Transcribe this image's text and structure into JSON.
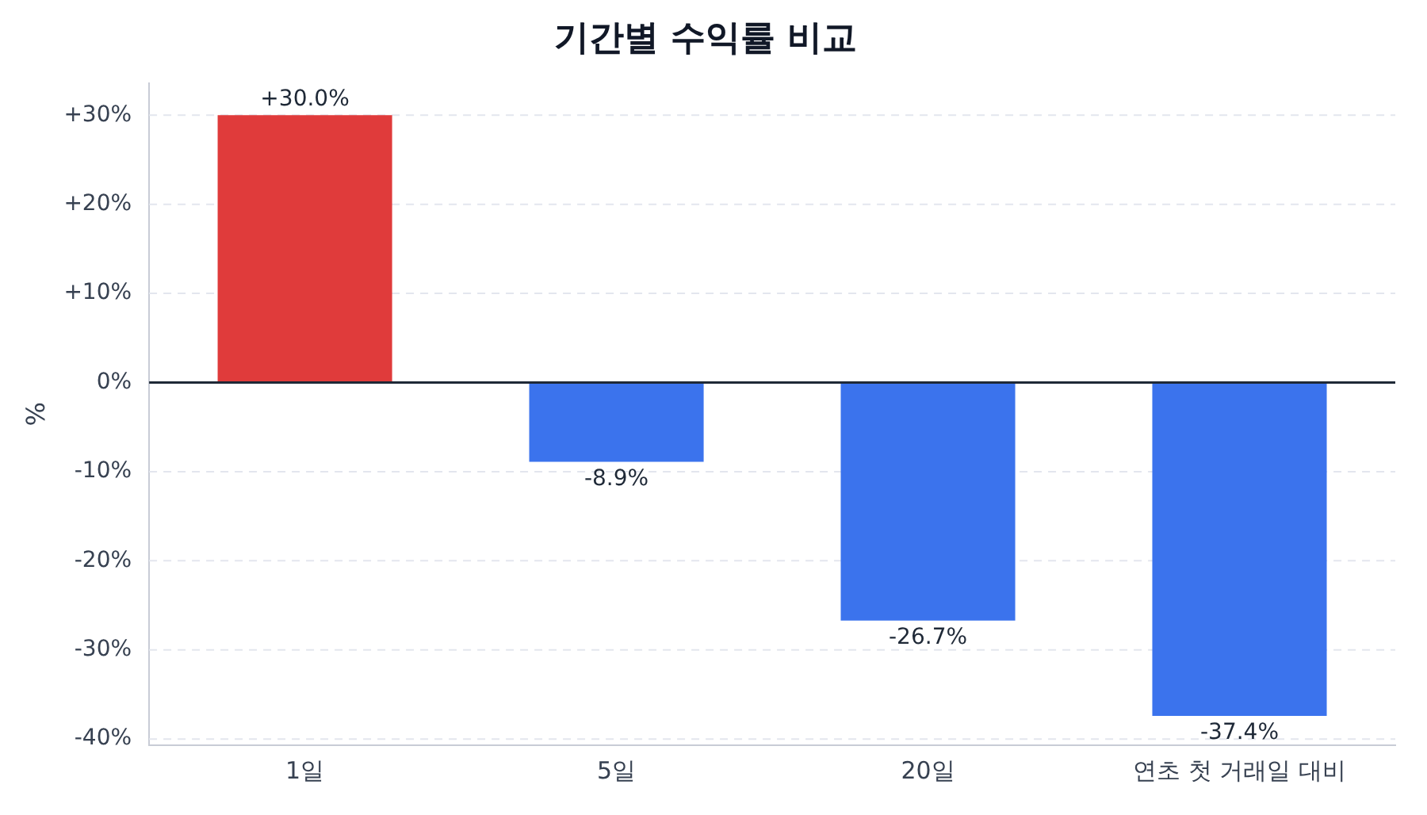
{
  "chart_data": {
    "type": "bar",
    "title": "기간별 수익률 비교",
    "ylabel": "%",
    "categories": [
      "1일",
      "5일",
      "20일",
      "연초 첫 거래일 대비"
    ],
    "values": [
      30.0,
      -8.9,
      -26.7,
      -37.4
    ],
    "colors": [
      "#e03b3b",
      "#3b73ed",
      "#3b73ed",
      "#3b73ed"
    ],
    "value_labels": [
      "+30.0%",
      "-8.9%",
      "-26.7%",
      "-37.4%"
    ],
    "ylim": [
      -40.7,
      33.6
    ],
    "yticks": [
      {
        "value": -40,
        "label": "-40%"
      },
      {
        "value": -30,
        "label": "-30%"
      },
      {
        "value": -20,
        "label": "-20%"
      },
      {
        "value": -10,
        "label": "-10%"
      },
      {
        "value": 0,
        "label": "0%"
      },
      {
        "value": 10,
        "label": "+10%"
      },
      {
        "value": 20,
        "label": "+20%"
      },
      {
        "value": 30,
        "label": "+30%"
      }
    ],
    "ref_lines": [
      {
        "axis": "y",
        "value": 0,
        "color": "#1f2937"
      }
    ],
    "grid": "y",
    "legend": false
  }
}
